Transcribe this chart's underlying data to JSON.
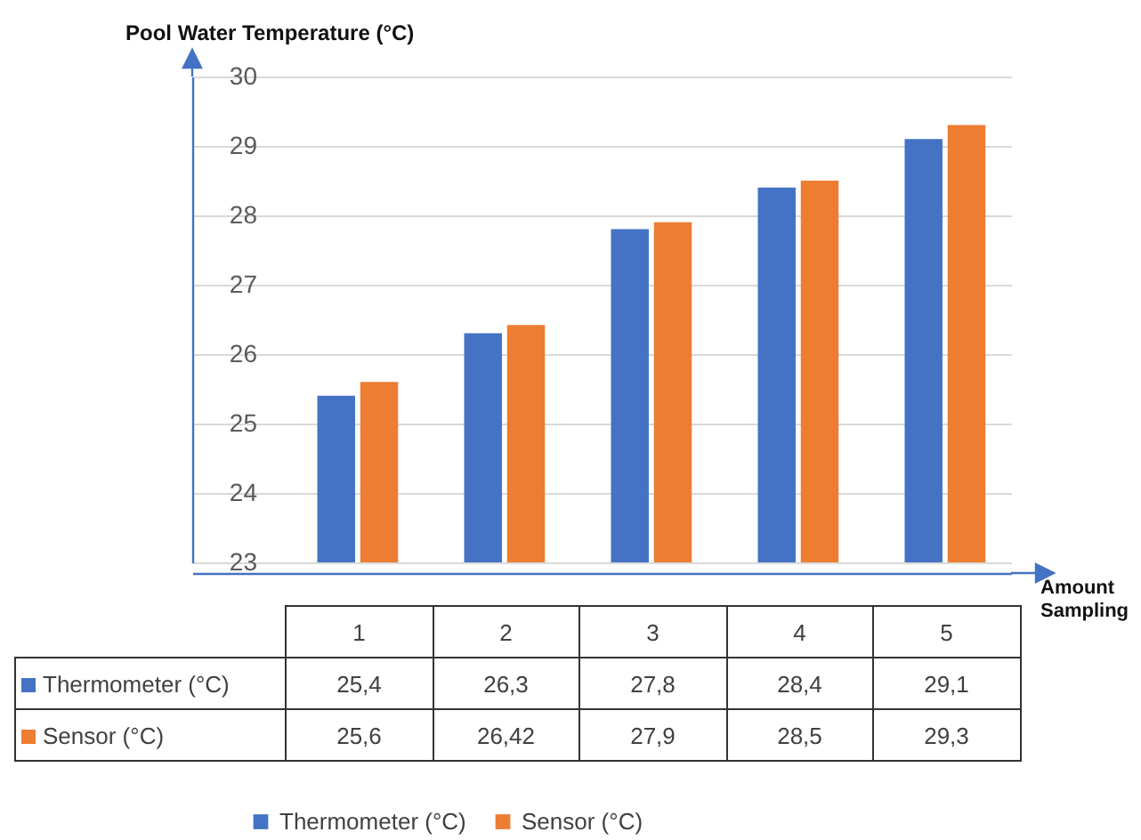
{
  "chart_data": {
    "type": "bar",
    "xlabel": "Amount Sampling",
    "ylabel": "Pool Water Temperature (°C)",
    "categories": [
      "1",
      "2",
      "3",
      "4",
      "5"
    ],
    "series": [
      {
        "name": "Thermometer (°C)",
        "color": "#4472c4",
        "values": [
          25.4,
          26.3,
          27.8,
          28.4,
          29.1
        ],
        "value_labels": [
          "25,4",
          "26,3",
          "27,8",
          "28,4",
          "29,1"
        ]
      },
      {
        "name": "Sensor (°C)",
        "color": "#ed7d31",
        "values": [
          25.6,
          26.42,
          27.9,
          28.5,
          29.3
        ],
        "value_labels": [
          "25,6",
          "26,42",
          "27,9",
          "28,5",
          "29,3"
        ]
      }
    ],
    "ylim": [
      23,
      30
    ],
    "yticks": [
      23,
      24,
      25,
      26,
      27,
      28,
      29,
      30
    ],
    "grid": "y",
    "legend": "bottom",
    "tick_labels": "y"
  }
}
